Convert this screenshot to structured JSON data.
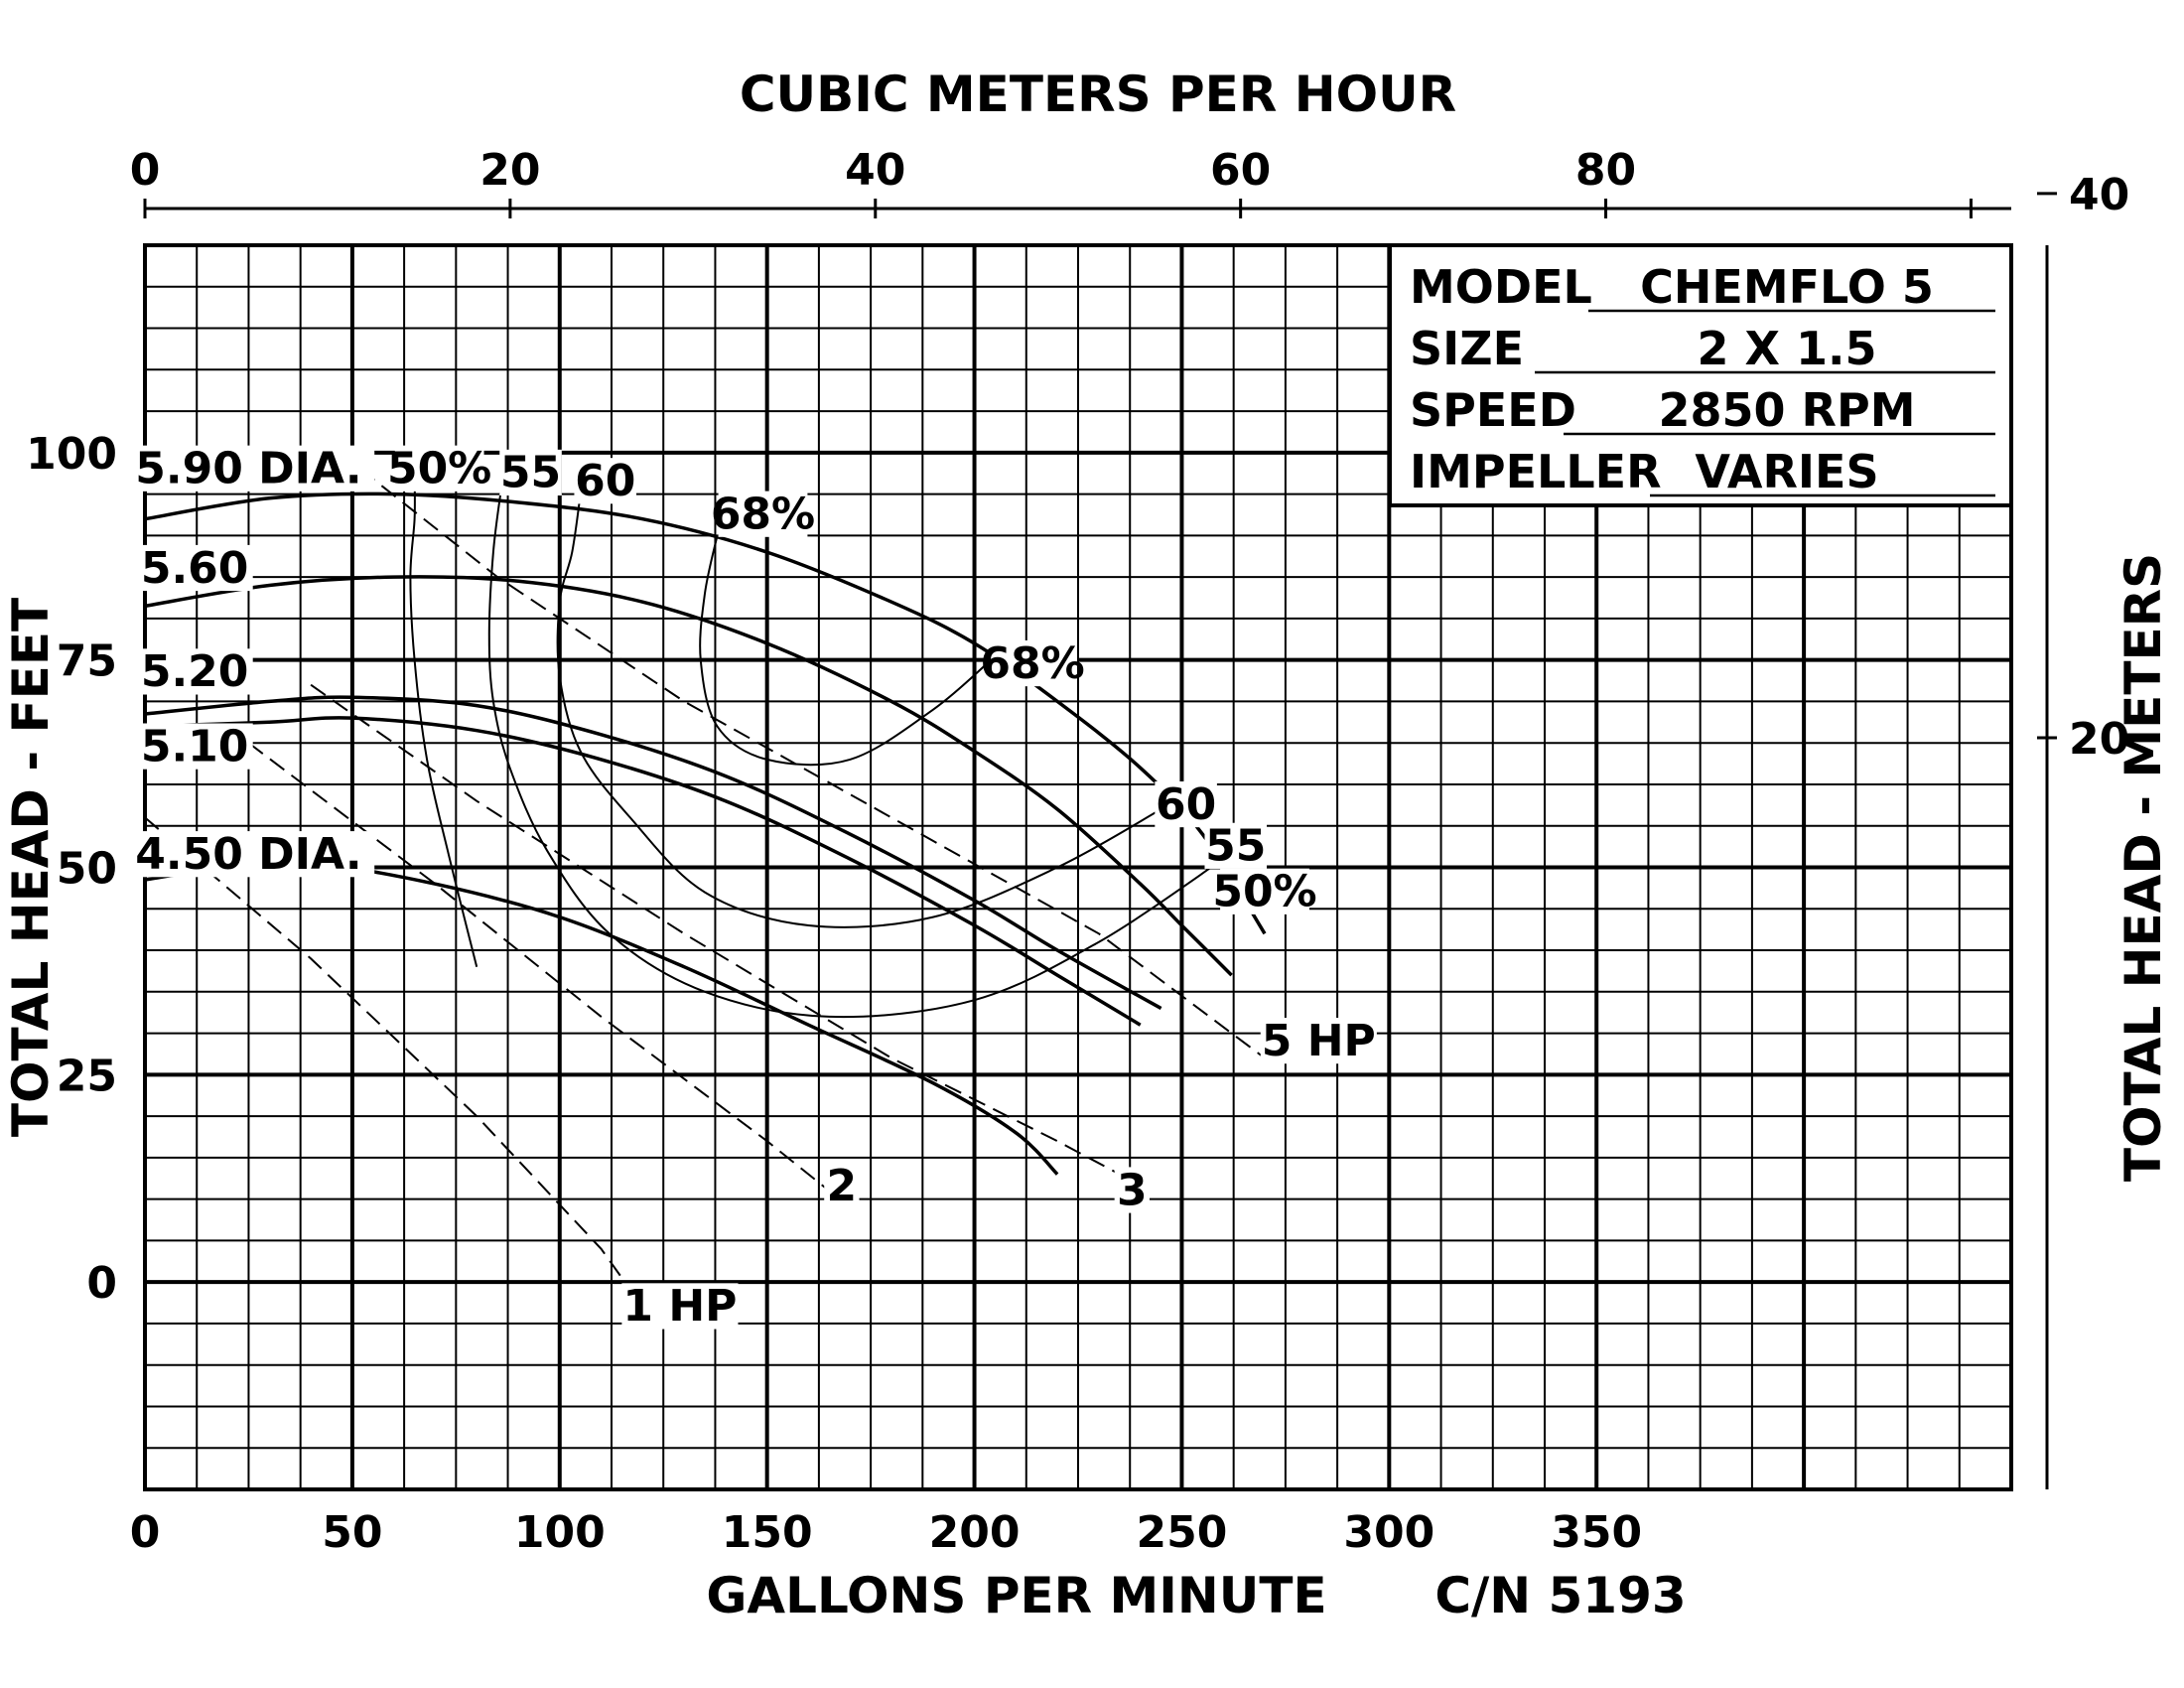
{
  "chart_data": {
    "type": "line",
    "title": "",
    "xlabel": "GALLONS PER MINUTE",
    "ylabel": "TOTAL HEAD - FEET",
    "x2label": "CUBIC METERS PER HOUR",
    "y2label": "TOTAL HEAD - METERS",
    "xlim": [
      0,
      450
    ],
    "ylim": [
      -25,
      125
    ],
    "x_ticks": [
      "0",
      "50",
      "100",
      "150",
      "200",
      "250",
      "300",
      "350"
    ],
    "y_ticks": [
      "0",
      "25",
      "50",
      "75",
      "100"
    ],
    "x2_ticks": [
      "0",
      "20",
      "40",
      "60",
      "80"
    ],
    "y2_ticks": [
      "20",
      "40"
    ],
    "grid": true,
    "catalog_number": "C/N 5193",
    "info_box": [
      {
        "label": "MODEL",
        "value": "CHEMFLO 5"
      },
      {
        "label": "SIZE",
        "value": "2 X 1.5"
      },
      {
        "label": "SPEED",
        "value": "2850 RPM"
      },
      {
        "label": "IMPELLER",
        "value": "VARIES"
      }
    ],
    "impeller_curves": [
      {
        "label": "5.90 DIA.",
        "points": [
          [
            0,
            92
          ],
          [
            30,
            94.5
          ],
          [
            60,
            95
          ],
          [
            90,
            94
          ],
          [
            120,
            92
          ],
          [
            150,
            88
          ],
          [
            180,
            82
          ],
          [
            200,
            77
          ],
          [
            220,
            70
          ],
          [
            240,
            62
          ],
          [
            255,
            54
          ],
          [
            270,
            42
          ]
        ]
      },
      {
        "label": "5.60",
        "points": [
          [
            0,
            81.5
          ],
          [
            30,
            84
          ],
          [
            60,
            85
          ],
          [
            90,
            84.5
          ],
          [
            120,
            82
          ],
          [
            150,
            77
          ],
          [
            180,
            70
          ],
          [
            200,
            64
          ],
          [
            220,
            57
          ],
          [
            240,
            48
          ],
          [
            250,
            43
          ],
          [
            262,
            37
          ]
        ]
      },
      {
        "label": "5.20",
        "points": [
          [
            0,
            68.5
          ],
          [
            30,
            70
          ],
          [
            50,
            70.5
          ],
          [
            80,
            69.5
          ],
          [
            110,
            66
          ],
          [
            140,
            61
          ],
          [
            170,
            54
          ],
          [
            200,
            46
          ],
          [
            220,
            40
          ],
          [
            245,
            33
          ]
        ]
      },
      {
        "label": "5.10",
        "points": [
          [
            0,
            67
          ],
          [
            30,
            67.5
          ],
          [
            50,
            68
          ],
          [
            80,
            66.5
          ],
          [
            110,
            63
          ],
          [
            140,
            58
          ],
          [
            170,
            51
          ],
          [
            200,
            43
          ],
          [
            220,
            37
          ],
          [
            240,
            31
          ]
        ]
      },
      {
        "label": "4.50 DIA.",
        "points": [
          [
            0,
            48.5
          ],
          [
            20,
            50
          ],
          [
            40,
            50.5
          ],
          [
            70,
            48
          ],
          [
            100,
            44
          ],
          [
            130,
            38
          ],
          [
            160,
            31
          ],
          [
            190,
            24
          ],
          [
            210,
            18
          ],
          [
            220,
            13
          ]
        ]
      }
    ],
    "efficiency_curves": [
      {
        "label": "50%",
        "points": [
          [
            65,
            97
          ],
          [
            65,
            92
          ],
          [
            64,
            85
          ],
          [
            65,
            75
          ],
          [
            68,
            63
          ],
          [
            73,
            52
          ],
          [
            80,
            38
          ]
        ]
      },
      {
        "label": "55",
        "points": [
          [
            86,
            96
          ],
          [
            84,
            88
          ],
          [
            83,
            78
          ],
          [
            84,
            70
          ],
          [
            88,
            62
          ],
          [
            97,
            52
          ],
          [
            112,
            42
          ],
          [
            135,
            35
          ],
          [
            165,
            32
          ],
          [
            200,
            34
          ],
          [
            230,
            41
          ],
          [
            260,
            51
          ]
        ]
      },
      {
        "label": "60",
        "points": [
          [
            105,
            95
          ],
          [
            103,
            88
          ],
          [
            100,
            82
          ],
          [
            100,
            73
          ],
          [
            105,
            64
          ],
          [
            117,
            56
          ],
          [
            135,
            47
          ],
          [
            160,
            43
          ],
          [
            190,
            44
          ],
          [
            220,
            50
          ],
          [
            245,
            57
          ]
        ]
      },
      {
        "label": "68%",
        "points": [
          [
            138,
            90
          ],
          [
            135,
            83
          ],
          [
            134,
            75
          ],
          [
            138,
            67
          ],
          [
            150,
            63
          ],
          [
            170,
            63
          ],
          [
            190,
            69
          ],
          [
            204,
            75
          ]
        ]
      }
    ],
    "power_lines": [
      {
        "label": "5 HP",
        "points": [
          [
            52,
            98
          ],
          [
            85,
            85
          ],
          [
            130,
            70
          ],
          [
            180,
            56
          ],
          [
            230,
            42
          ],
          [
            270,
            27
          ]
        ]
      },
      {
        "label": "3",
        "points": [
          [
            40,
            72
          ],
          [
            80,
            58
          ],
          [
            130,
            42
          ],
          [
            180,
            27
          ],
          [
            220,
            17
          ],
          [
            235,
            13
          ]
        ]
      },
      {
        "label": "2",
        "points": [
          [
            25,
            65
          ],
          [
            70,
            48
          ],
          [
            110,
            32
          ],
          [
            150,
            17
          ],
          [
            165,
            11
          ]
        ]
      },
      {
        "label": "1 HP",
        "points": [
          [
            0,
            56
          ],
          [
            40,
            39
          ],
          [
            80,
            20
          ],
          [
            110,
            4
          ],
          [
            120,
            -3
          ]
        ]
      }
    ]
  }
}
